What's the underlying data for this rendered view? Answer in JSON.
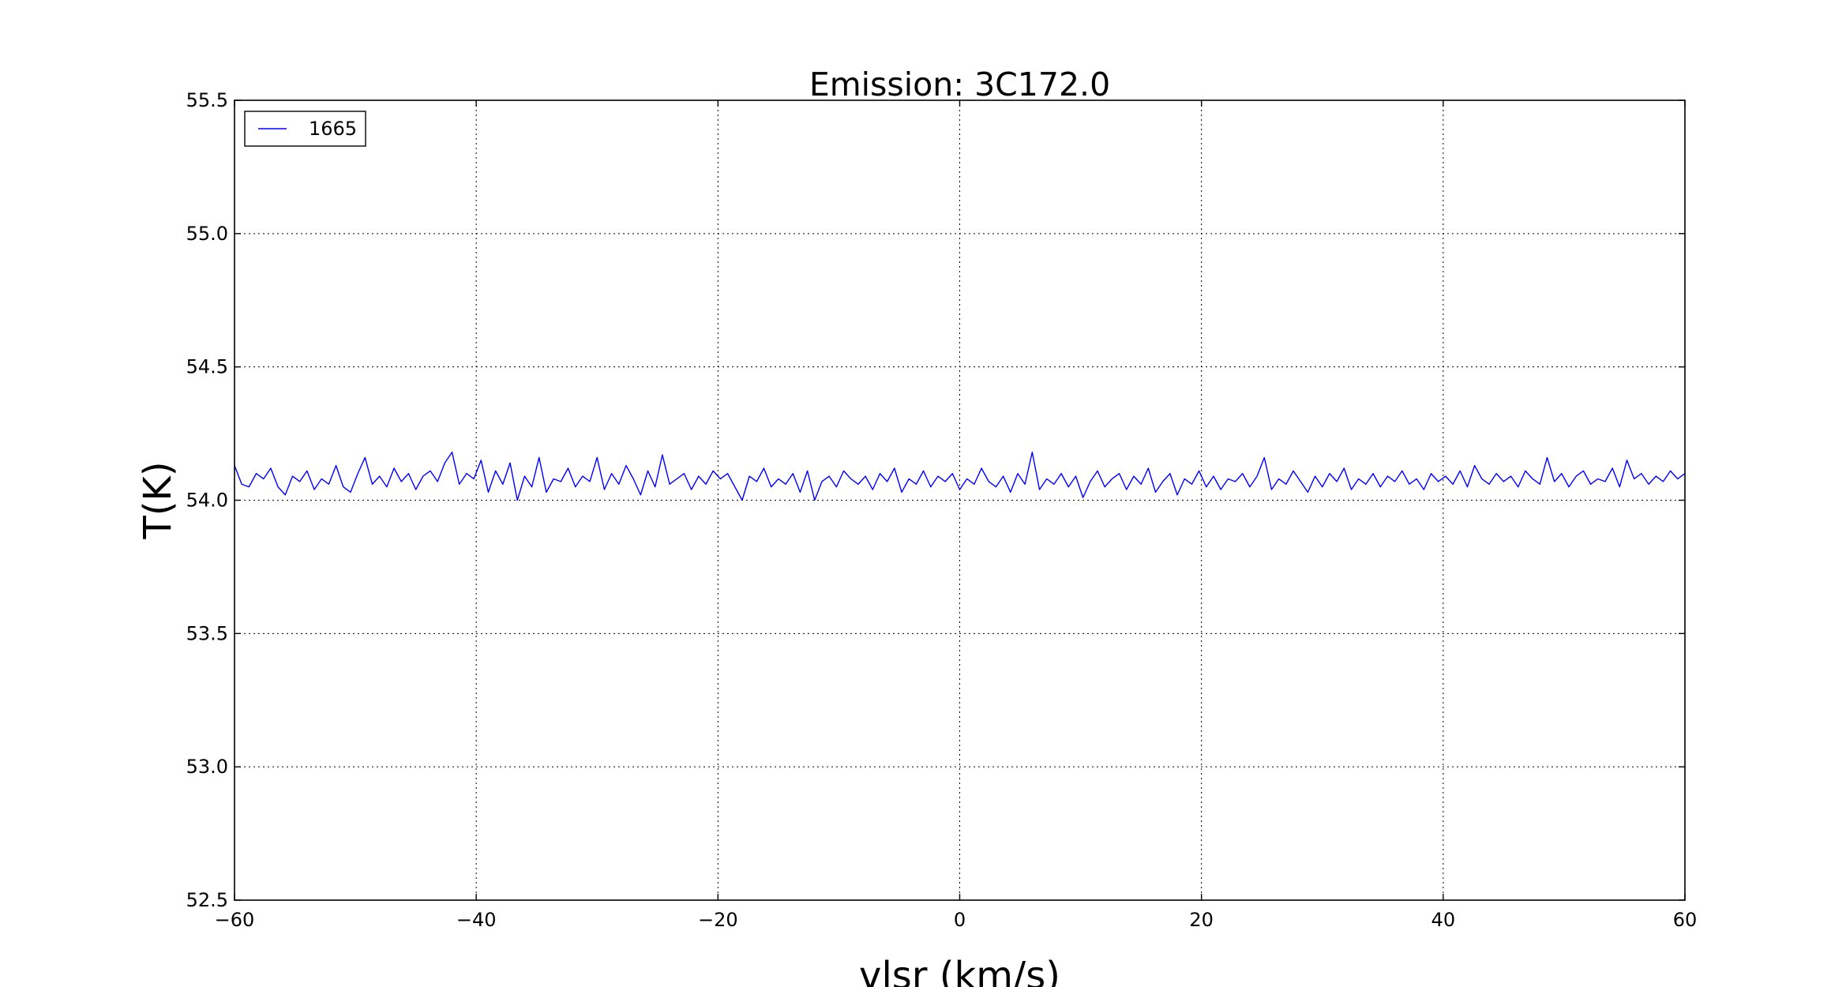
{
  "chart_data": {
    "type": "line",
    "title": "Emission: 3C172.0",
    "xlabel": "vlsr (km/s)",
    "ylabel": "T(K)",
    "xlim": [
      -60,
      60
    ],
    "ylim": [
      52.5,
      55.5
    ],
    "xticks": [
      -60,
      -40,
      -20,
      0,
      20,
      40,
      60
    ],
    "xtick_labels": [
      "−60",
      "−40",
      "−20",
      "0",
      "20",
      "40",
      "60"
    ],
    "yticks": [
      52.5,
      53.0,
      53.5,
      54.0,
      54.5,
      55.0,
      55.5
    ],
    "ytick_labels": [
      "52.5",
      "53.0",
      "53.5",
      "54.0",
      "54.5",
      "55.0",
      "55.5"
    ],
    "grid": true,
    "legend_position": "top-left",
    "series": [
      {
        "name": "1665",
        "color": "#0000ff",
        "x_start": -60,
        "x_end": 60,
        "y": [
          54.13,
          54.06,
          54.05,
          54.1,
          54.08,
          54.12,
          54.05,
          54.02,
          54.09,
          54.07,
          54.11,
          54.04,
          54.08,
          54.06,
          54.13,
          54.05,
          54.03,
          54.1,
          54.16,
          54.06,
          54.09,
          54.05,
          54.12,
          54.07,
          54.1,
          54.04,
          54.09,
          54.11,
          54.07,
          54.14,
          54.18,
          54.06,
          54.1,
          54.08,
          54.15,
          54.03,
          54.11,
          54.06,
          54.14,
          54.0,
          54.09,
          54.05,
          54.16,
          54.03,
          54.08,
          54.07,
          54.12,
          54.05,
          54.09,
          54.07,
          54.16,
          54.04,
          54.1,
          54.06,
          54.13,
          54.08,
          54.02,
          54.11,
          54.05,
          54.17,
          54.06,
          54.08,
          54.1,
          54.04,
          54.09,
          54.06,
          54.11,
          54.08,
          54.1,
          54.05,
          54.0,
          54.09,
          54.07,
          54.12,
          54.05,
          54.08,
          54.06,
          54.1,
          54.03,
          54.11,
          54.0,
          54.07,
          54.09,
          54.05,
          54.11,
          54.08,
          54.06,
          54.09,
          54.04,
          54.1,
          54.07,
          54.12,
          54.03,
          54.08,
          54.06,
          54.11,
          54.05,
          54.09,
          54.07,
          54.1,
          54.04,
          54.08,
          54.06,
          54.12,
          54.07,
          54.05,
          54.09,
          54.03,
          54.1,
          54.06,
          54.18,
          54.04,
          54.08,
          54.06,
          54.1,
          54.05,
          54.09,
          54.01,
          54.07,
          54.11,
          54.05,
          54.08,
          54.1,
          54.04,
          54.09,
          54.06,
          54.12,
          54.03,
          54.07,
          54.1,
          54.02,
          54.08,
          54.06,
          54.11,
          54.05,
          54.09,
          54.04,
          54.08,
          54.07,
          54.1,
          54.05,
          54.09,
          54.16,
          54.04,
          54.08,
          54.06,
          54.11,
          54.07,
          54.03,
          54.09,
          54.05,
          54.1,
          54.07,
          54.12,
          54.04,
          54.08,
          54.06,
          54.1,
          54.05,
          54.09,
          54.07,
          54.11,
          54.06,
          54.08,
          54.04,
          54.1,
          54.07,
          54.09,
          54.06,
          54.11,
          54.05,
          54.13,
          54.08,
          54.06,
          54.1,
          54.07,
          54.09,
          54.05,
          54.11,
          54.08,
          54.06,
          54.16,
          54.07,
          54.1,
          54.05,
          54.09,
          54.11,
          54.06,
          54.08,
          54.07,
          54.12,
          54.05,
          54.15,
          54.08,
          54.1,
          54.06,
          54.09,
          54.07,
          54.11,
          54.08,
          54.1
        ]
      }
    ]
  }
}
